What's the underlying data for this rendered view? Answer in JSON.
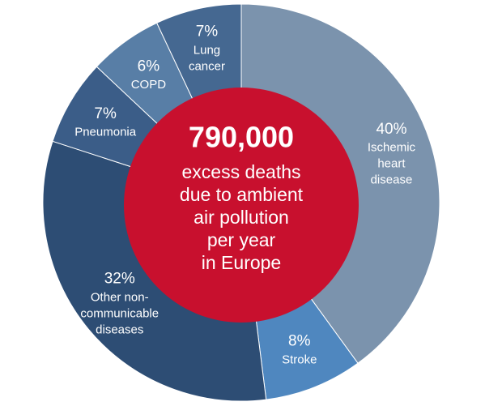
{
  "chart_data": {
    "type": "donut",
    "center_value": "790,000",
    "center_text": "excess deaths\ndue to ambient\nair pollution\nper year\nin Europe",
    "categories": [
      "Ischemic\nheart\ndisease",
      "Stroke",
      "Other non-\ncommunicable\ndiseases",
      "Pneumonia",
      "COPD",
      "Lung\ncancer"
    ],
    "values": [
      40,
      8,
      32,
      7,
      6,
      7
    ],
    "value_labels": [
      "40%",
      "8%",
      "32%",
      "7%",
      "6%",
      "7%"
    ],
    "colors": [
      "#7b93ad",
      "#4f87bf",
      "#2d4d74",
      "#3b5d88",
      "#587ea6",
      "#456891"
    ],
    "center_color": "#c8102e"
  }
}
